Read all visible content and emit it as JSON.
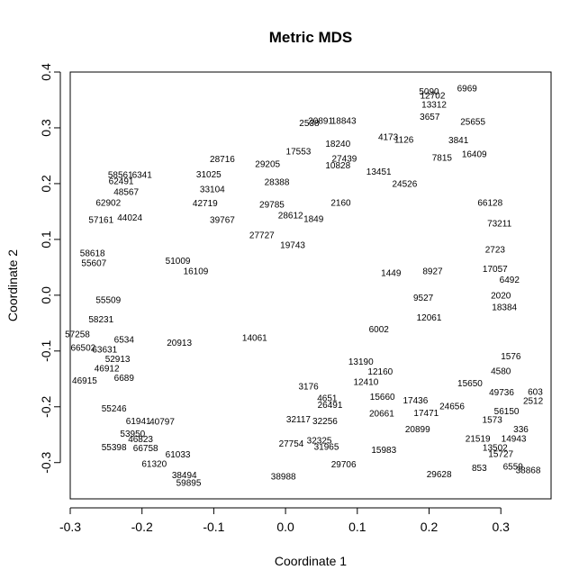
{
  "chart_data": {
    "type": "scatter",
    "title": "Metric MDS",
    "xlabel": "Coordinate 1",
    "ylabel": "Coordinate 2",
    "xlim": [
      -0.3,
      0.37
    ],
    "ylim": [
      -0.365,
      0.4
    ],
    "xticks": [
      -0.3,
      -0.2,
      -0.1,
      0.0,
      0.1,
      0.2,
      0.3
    ],
    "yticks": [
      -0.3,
      -0.2,
      -0.1,
      0.0,
      0.1,
      0.2,
      0.3,
      0.4
    ],
    "xtick_labels": [
      "-0.3",
      "-0.2",
      "-0.1",
      "0.0",
      "0.1",
      "0.2",
      "0.3"
    ],
    "ytick_labels": [
      "-0.3",
      "-0.2",
      "-0.1",
      "0.0",
      "0.1",
      "0.2",
      "0.3",
      "0.4"
    ],
    "grid": false,
    "legend": "none",
    "note": "Each point is drawn as its numeric label text (no markers).",
    "points": [
      {
        "label": "6969",
        "x": 0.253,
        "y": 0.371
      },
      {
        "label": "5090",
        "x": 0.2,
        "y": 0.365
      },
      {
        "label": "12702",
        "x": 0.205,
        "y": 0.358
      },
      {
        "label": "13312",
        "x": 0.207,
        "y": 0.342
      },
      {
        "label": "3657",
        "x": 0.201,
        "y": 0.32
      },
      {
        "label": "25655",
        "x": 0.261,
        "y": 0.311
      },
      {
        "label": "2538",
        "x": 0.033,
        "y": 0.309
      },
      {
        "label": "20891",
        "x": 0.049,
        "y": 0.313
      },
      {
        "label": "18843",
        "x": 0.081,
        "y": 0.313
      },
      {
        "label": "4173",
        "x": 0.143,
        "y": 0.284
      },
      {
        "label": "1126",
        "x": 0.165,
        "y": 0.279
      },
      {
        "label": "3841",
        "x": 0.241,
        "y": 0.278
      },
      {
        "label": "17553",
        "x": 0.018,
        "y": 0.258
      },
      {
        "label": "18240",
        "x": 0.073,
        "y": 0.272
      },
      {
        "label": "27439",
        "x": 0.082,
        "y": 0.245
      },
      {
        "label": "7815",
        "x": 0.218,
        "y": 0.247
      },
      {
        "label": "16409",
        "x": 0.263,
        "y": 0.253
      },
      {
        "label": "28716",
        "x": -0.088,
        "y": 0.244
      },
      {
        "label": "29205",
        "x": -0.025,
        "y": 0.235
      },
      {
        "label": "10828",
        "x": 0.073,
        "y": 0.233
      },
      {
        "label": "13451",
        "x": 0.13,
        "y": 0.222
      },
      {
        "label": "58561",
        "x": -0.23,
        "y": 0.216
      },
      {
        "label": "6341",
        "x": -0.2,
        "y": 0.216
      },
      {
        "label": "31025",
        "x": -0.107,
        "y": 0.217
      },
      {
        "label": "28388",
        "x": -0.012,
        "y": 0.203
      },
      {
        "label": "62491",
        "x": -0.229,
        "y": 0.205
      },
      {
        "label": "24526",
        "x": 0.166,
        "y": 0.2
      },
      {
        "label": "33104",
        "x": -0.102,
        "y": 0.19
      },
      {
        "label": "48567",
        "x": -0.222,
        "y": 0.185
      },
      {
        "label": "42719",
        "x": -0.112,
        "y": 0.165
      },
      {
        "label": "29785",
        "x": -0.019,
        "y": 0.163
      },
      {
        "label": "2160",
        "x": 0.077,
        "y": 0.166
      },
      {
        "label": "62902",
        "x": -0.247,
        "y": 0.166
      },
      {
        "label": "66128",
        "x": 0.285,
        "y": 0.166
      },
      {
        "label": "57161",
        "x": -0.257,
        "y": 0.135
      },
      {
        "label": "39767",
        "x": -0.088,
        "y": 0.135
      },
      {
        "label": "44024",
        "x": -0.217,
        "y": 0.139
      },
      {
        "label": "28612",
        "x": 0.007,
        "y": 0.143
      },
      {
        "label": "1849",
        "x": 0.039,
        "y": 0.137
      },
      {
        "label": "73211",
        "x": 0.298,
        "y": 0.129
      },
      {
        "label": "27727",
        "x": -0.033,
        "y": 0.108
      },
      {
        "label": "19743",
        "x": 0.01,
        "y": 0.09
      },
      {
        "label": "2723",
        "x": 0.292,
        "y": 0.082
      },
      {
        "label": "58618",
        "x": -0.269,
        "y": 0.076
      },
      {
        "label": "55607",
        "x": -0.267,
        "y": 0.058
      },
      {
        "label": "51009",
        "x": -0.15,
        "y": 0.062
      },
      {
        "label": "17057",
        "x": 0.292,
        "y": 0.047
      },
      {
        "label": "6492",
        "x": 0.312,
        "y": 0.028
      },
      {
        "label": "1449",
        "x": 0.147,
        "y": 0.04
      },
      {
        "label": "8927",
        "x": 0.205,
        "y": 0.043
      },
      {
        "label": "16109",
        "x": -0.125,
        "y": 0.043
      },
      {
        "label": "9527",
        "x": 0.192,
        "y": -0.004
      },
      {
        "label": "2020",
        "x": 0.3,
        "y": 0.0
      },
      {
        "label": "55509",
        "x": -0.247,
        "y": -0.008
      },
      {
        "label": "18384",
        "x": 0.305,
        "y": -0.021
      },
      {
        "label": "58231",
        "x": -0.257,
        "y": -0.043
      },
      {
        "label": "57258",
        "x": -0.29,
        "y": -0.07
      },
      {
        "label": "6534",
        "x": -0.225,
        "y": -0.079
      },
      {
        "label": "20913",
        "x": -0.148,
        "y": -0.085
      },
      {
        "label": "14061",
        "x": -0.043,
        "y": -0.076
      },
      {
        "label": "6002",
        "x": 0.13,
        "y": -0.061
      },
      {
        "label": "12061",
        "x": 0.2,
        "y": -0.04
      },
      {
        "label": "66502",
        "x": -0.282,
        "y": -0.094
      },
      {
        "label": "63631",
        "x": -0.252,
        "y": -0.097
      },
      {
        "label": "52913",
        "x": -0.234,
        "y": -0.114
      },
      {
        "label": "13190",
        "x": 0.105,
        "y": -0.119
      },
      {
        "label": "1576",
        "x": 0.314,
        "y": -0.109
      },
      {
        "label": "46912",
        "x": -0.249,
        "y": -0.131
      },
      {
        "label": "6689",
        "x": -0.225,
        "y": -0.148
      },
      {
        "label": "46915",
        "x": -0.28,
        "y": -0.153
      },
      {
        "label": "12160",
        "x": 0.132,
        "y": -0.137
      },
      {
        "label": "4580",
        "x": 0.3,
        "y": -0.136
      },
      {
        "label": "15650",
        "x": 0.257,
        "y": -0.158
      },
      {
        "label": "12410",
        "x": 0.112,
        "y": -0.155
      },
      {
        "label": "3176",
        "x": 0.032,
        "y": -0.163
      },
      {
        "label": "49736",
        "x": 0.301,
        "y": -0.174
      },
      {
        "label": "603",
        "x": 0.348,
        "y": -0.173
      },
      {
        "label": "2512",
        "x": 0.345,
        "y": -0.189
      },
      {
        "label": "15660",
        "x": 0.135,
        "y": -0.182
      },
      {
        "label": "17436",
        "x": 0.181,
        "y": -0.188
      },
      {
        "label": "24656",
        "x": 0.232,
        "y": -0.199
      },
      {
        "label": "4651",
        "x": 0.058,
        "y": -0.184
      },
      {
        "label": "26491",
        "x": 0.062,
        "y": -0.196
      },
      {
        "label": "55246",
        "x": -0.239,
        "y": -0.203
      },
      {
        "label": "20661",
        "x": 0.134,
        "y": -0.212
      },
      {
        "label": "17471",
        "x": 0.196,
        "y": -0.211
      },
      {
        "label": "1573",
        "x": 0.288,
        "y": -0.223
      },
      {
        "label": "56150",
        "x": 0.308,
        "y": -0.208
      },
      {
        "label": "61941",
        "x": -0.205,
        "y": -0.225
      },
      {
        "label": "40797",
        "x": -0.172,
        "y": -0.226
      },
      {
        "label": "32117",
        "x": 0.018,
        "y": -0.222
      },
      {
        "label": "32256",
        "x": 0.055,
        "y": -0.225
      },
      {
        "label": "20899",
        "x": 0.184,
        "y": -0.24
      },
      {
        "label": "336",
        "x": 0.328,
        "y": -0.24
      },
      {
        "label": "53950",
        "x": -0.213,
        "y": -0.248
      },
      {
        "label": "46823",
        "x": -0.202,
        "y": -0.258
      },
      {
        "label": "21519",
        "x": 0.268,
        "y": -0.257
      },
      {
        "label": "14943",
        "x": 0.318,
        "y": -0.257
      },
      {
        "label": "55398",
        "x": -0.239,
        "y": -0.272
      },
      {
        "label": "66758",
        "x": -0.195,
        "y": -0.274
      },
      {
        "label": "27754",
        "x": 0.008,
        "y": -0.266
      },
      {
        "label": "32325",
        "x": 0.047,
        "y": -0.26
      },
      {
        "label": "31965",
        "x": 0.057,
        "y": -0.271
      },
      {
        "label": "15983",
        "x": 0.137,
        "y": -0.277
      },
      {
        "label": "13502",
        "x": 0.292,
        "y": -0.273
      },
      {
        "label": "15727",
        "x": 0.3,
        "y": -0.284
      },
      {
        "label": "61033",
        "x": -0.15,
        "y": -0.285
      },
      {
        "label": "29706",
        "x": 0.081,
        "y": -0.303
      },
      {
        "label": "61320",
        "x": -0.183,
        "y": -0.302
      },
      {
        "label": "853",
        "x": 0.27,
        "y": -0.309
      },
      {
        "label": "6559",
        "x": 0.317,
        "y": -0.307
      },
      {
        "label": "38868",
        "x": 0.338,
        "y": -0.313
      },
      {
        "label": "38988",
        "x": -0.003,
        "y": -0.325
      },
      {
        "label": "29628",
        "x": 0.214,
        "y": -0.321
      },
      {
        "label": "38494",
        "x": -0.141,
        "y": -0.322
      },
      {
        "label": "59895",
        "x": -0.135,
        "y": -0.336
      }
    ]
  }
}
